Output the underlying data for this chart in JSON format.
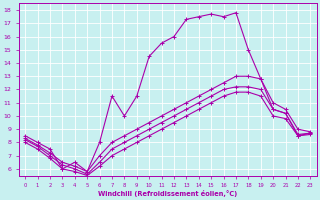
{
  "xlabel": "Windchill (Refroidissement éolien,°C)",
  "xlim": [
    -0.5,
    23.5
  ],
  "ylim": [
    5.5,
    18.5
  ],
  "yticks": [
    6,
    7,
    8,
    9,
    10,
    11,
    12,
    13,
    14,
    15,
    16,
    17,
    18
  ],
  "xticks": [
    0,
    1,
    2,
    3,
    4,
    5,
    6,
    7,
    8,
    9,
    10,
    11,
    12,
    13,
    14,
    15,
    16,
    17,
    18,
    19,
    20,
    21,
    22,
    23
  ],
  "bg_color": "#c8f0f0",
  "grid_color": "#ffffff",
  "line_color": "#aa00aa",
  "lines": [
    [
      8.5,
      8.0,
      7.5,
      6.0,
      6.5,
      5.8,
      8.0,
      11.5,
      10.0,
      11.5,
      14.5,
      15.5,
      16.0,
      17.3,
      17.5,
      17.7,
      17.5,
      17.8,
      15.0,
      12.8,
      10.5,
      10.2,
      8.5,
      8.7
    ],
    [
      8.3,
      7.8,
      7.2,
      6.5,
      6.2,
      5.8,
      7.0,
      8.0,
      8.5,
      9.0,
      9.5,
      10.0,
      10.5,
      11.0,
      11.5,
      12.0,
      12.5,
      13.0,
      13.0,
      12.8,
      11.0,
      10.5,
      9.0,
      8.8
    ],
    [
      8.2,
      7.7,
      7.0,
      6.3,
      6.0,
      5.6,
      6.5,
      7.5,
      8.0,
      8.5,
      9.0,
      9.5,
      10.0,
      10.5,
      11.0,
      11.5,
      12.0,
      12.2,
      12.2,
      12.0,
      10.5,
      10.2,
      8.6,
      8.7
    ],
    [
      8.0,
      7.5,
      6.8,
      6.0,
      5.8,
      5.5,
      6.2,
      7.0,
      7.5,
      8.0,
      8.5,
      9.0,
      9.5,
      10.0,
      10.5,
      11.0,
      11.5,
      11.8,
      11.8,
      11.5,
      10.0,
      9.8,
      8.5,
      8.6
    ]
  ]
}
